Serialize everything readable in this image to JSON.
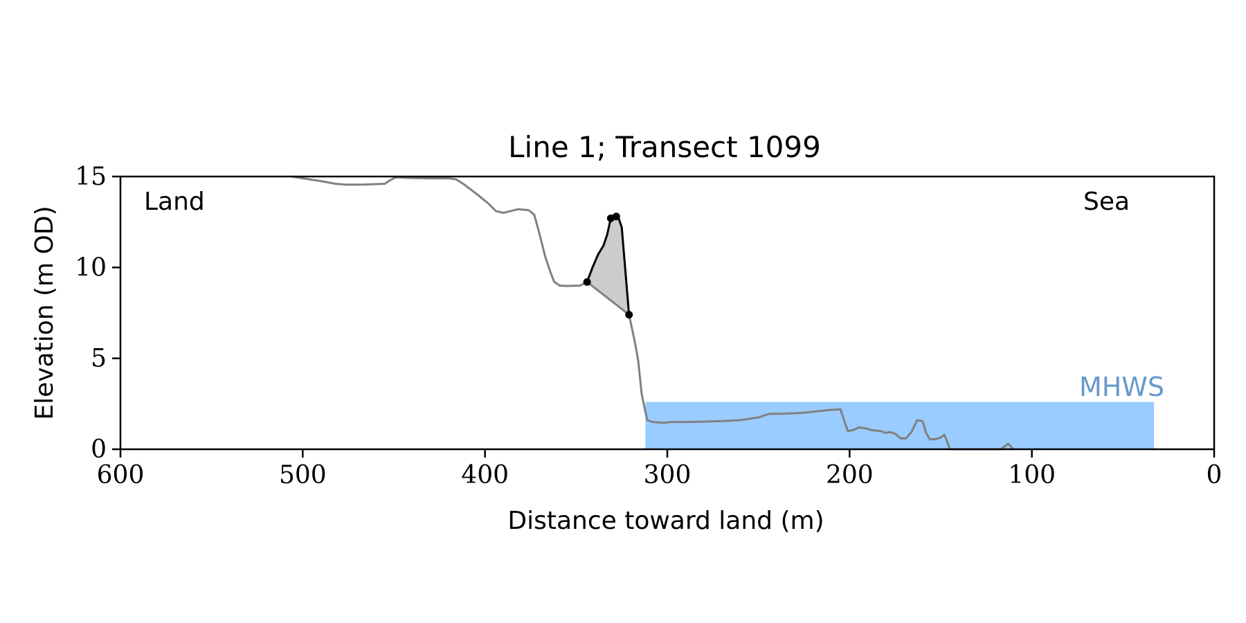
{
  "chart_data": {
    "type": "line",
    "title": "Line 1; Transect 1099",
    "xlabel": "Distance toward land (m)",
    "ylabel": "Elevation (m OD)",
    "xlim": [
      600,
      0
    ],
    "ylim": [
      0,
      15
    ],
    "x_ticks": [
      600,
      500,
      400,
      300,
      200,
      100,
      0
    ],
    "y_ticks": [
      0,
      5,
      10,
      15
    ],
    "grid": false,
    "annotations": {
      "land": "Land",
      "sea": "Sea",
      "mhws": "MHWS"
    },
    "mhws": {
      "elevation": 2.6,
      "x_from": 312,
      "x_to": 33,
      "color": "#99ccff",
      "label_color": "#6699cc"
    },
    "profile": {
      "color": "#808080",
      "points": [
        [
          506,
          15.0
        ],
        [
          500,
          14.9
        ],
        [
          490,
          14.75
        ],
        [
          482,
          14.6
        ],
        [
          476,
          14.55
        ],
        [
          468,
          14.55
        ],
        [
          460,
          14.58
        ],
        [
          455,
          14.6
        ],
        [
          452,
          14.8
        ],
        [
          449,
          14.95
        ],
        [
          440,
          14.92
        ],
        [
          430,
          14.9
        ],
        [
          420,
          14.9
        ],
        [
          416,
          14.85
        ],
        [
          412,
          14.6
        ],
        [
          404,
          14.0
        ],
        [
          398,
          13.5
        ],
        [
          394,
          13.1
        ],
        [
          390,
          13.0
        ],
        [
          386,
          13.1
        ],
        [
          382,
          13.2
        ],
        [
          376,
          13.15
        ],
        [
          373,
          12.9
        ],
        [
          370,
          11.8
        ],
        [
          367,
          10.6
        ],
        [
          364,
          9.7
        ],
        [
          362,
          9.2
        ],
        [
          359,
          9.0
        ],
        [
          355,
          8.98
        ],
        [
          348,
          9.0
        ],
        [
          344,
          9.2
        ],
        [
          321,
          7.4
        ],
        [
          318,
          6.0
        ],
        [
          316,
          4.9
        ],
        [
          314,
          3.0
        ],
        [
          311,
          1.6
        ],
        [
          308,
          1.5
        ],
        [
          302,
          1.45
        ],
        [
          298,
          1.5
        ],
        [
          290,
          1.5
        ],
        [
          280,
          1.52
        ],
        [
          270,
          1.55
        ],
        [
          260,
          1.6
        ],
        [
          250,
          1.75
        ],
        [
          244,
          1.95
        ],
        [
          238,
          1.95
        ],
        [
          226,
          2.0
        ],
        [
          212,
          2.15
        ],
        [
          205,
          2.2
        ],
        [
          201,
          1.0
        ],
        [
          198,
          1.05
        ],
        [
          195,
          1.2
        ],
        [
          191,
          1.15
        ],
        [
          188,
          1.05
        ],
        [
          183,
          1.0
        ],
        [
          180,
          0.9
        ],
        [
          178,
          0.95
        ],
        [
          175,
          0.85
        ],
        [
          172,
          0.6
        ],
        [
          169,
          0.6
        ],
        [
          166,
          0.95
        ],
        [
          163,
          1.6
        ],
        [
          160,
          1.55
        ],
        [
          158,
          0.9
        ],
        [
          156,
          0.55
        ],
        [
          153,
          0.55
        ],
        [
          150,
          0.65
        ],
        [
          148,
          0.8
        ],
        [
          146,
          0.3
        ],
        [
          145,
          0.0
        ],
        [
          117,
          0.0
        ],
        [
          113,
          0.3
        ],
        [
          110,
          0.0
        ]
      ]
    },
    "feature": {
      "color": "#000000",
      "fill": "#cccccc",
      "points": [
        [
          344,
          9.2
        ],
        [
          341,
          10.0
        ],
        [
          338,
          10.7
        ],
        [
          335,
          11.2
        ],
        [
          333,
          11.8
        ],
        [
          331,
          12.7
        ],
        [
          327,
          12.8
        ],
        [
          325,
          12.2
        ],
        [
          321,
          7.4
        ]
      ],
      "markers": [
        [
          344,
          9.2
        ],
        [
          331,
          12.7
        ],
        [
          328,
          12.8
        ],
        [
          321,
          7.4
        ]
      ]
    }
  }
}
